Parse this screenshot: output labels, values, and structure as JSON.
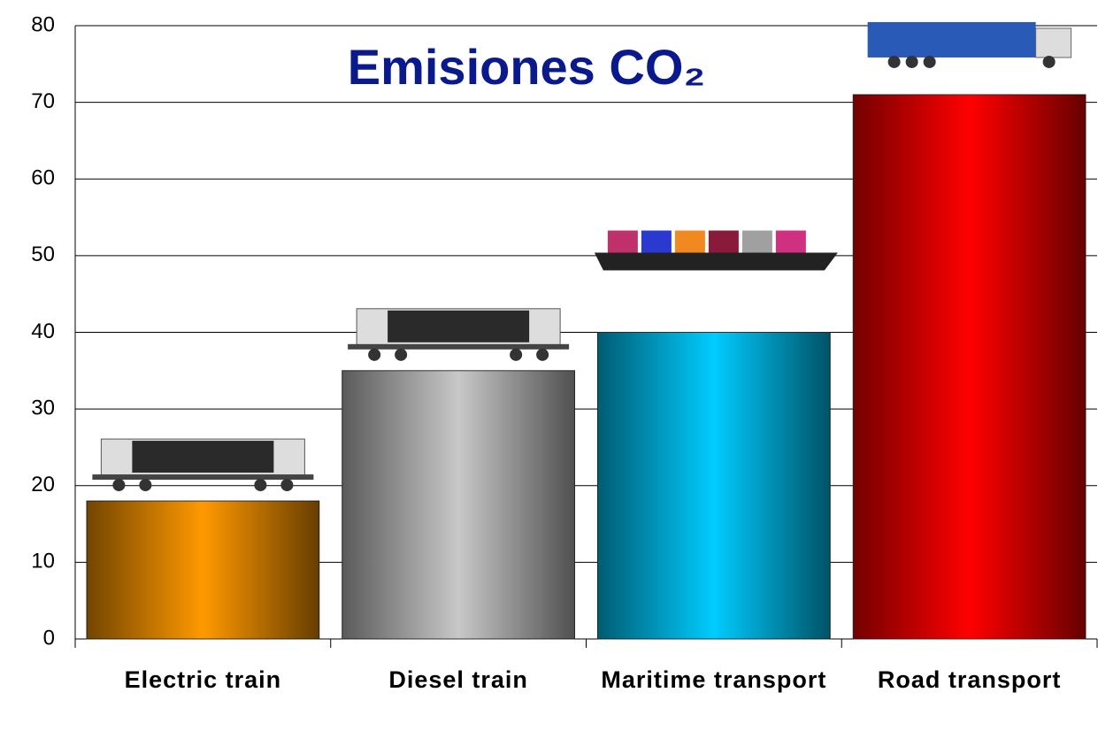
{
  "chart_data": {
    "type": "bar",
    "title": "Emisiones CO₂",
    "categories": [
      "Electric train",
      "Diesel train",
      "Maritime transport",
      "Road transport"
    ],
    "values": [
      18,
      35,
      40,
      71
    ],
    "colors": [
      "#ff9900",
      "#c8c8c8",
      "#00ccff",
      "#ff0000"
    ],
    "ylim": [
      0,
      80
    ],
    "yticks": [
      0,
      10,
      20,
      30,
      40,
      50,
      60,
      70,
      80
    ],
    "grid": true
  }
}
